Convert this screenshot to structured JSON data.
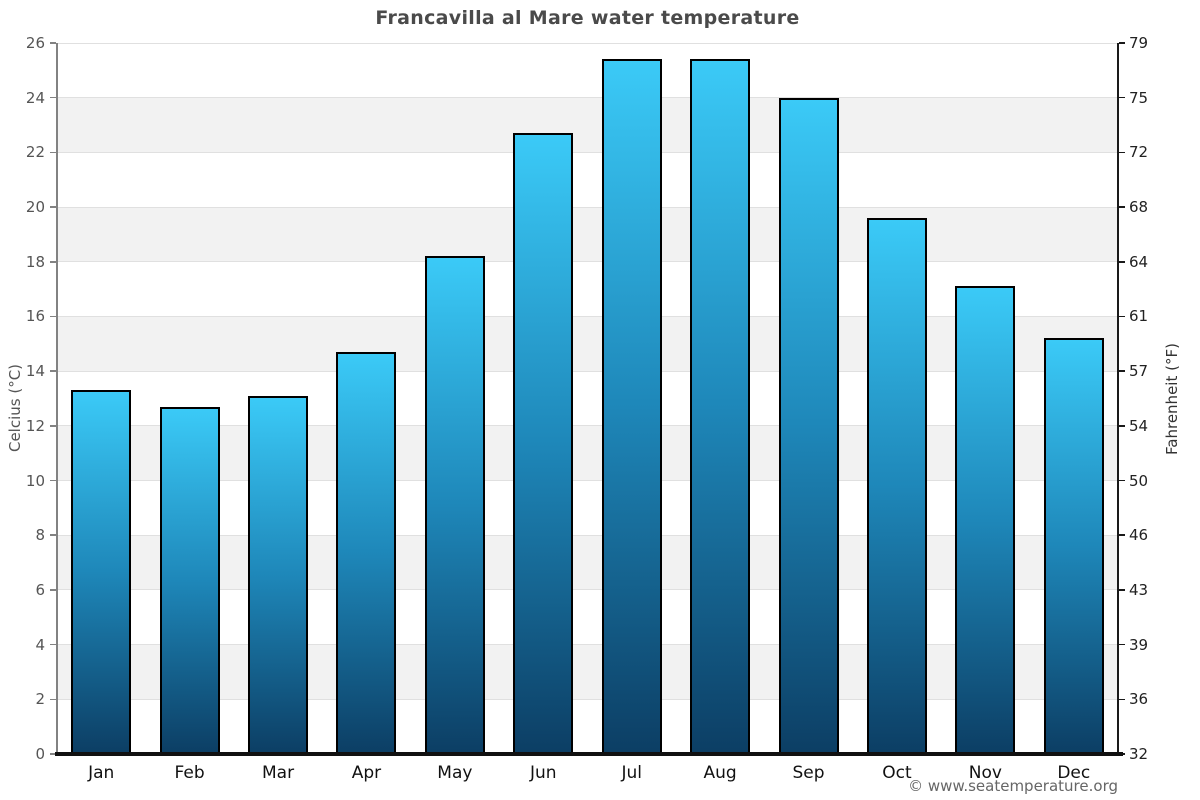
{
  "chart_data": {
    "type": "bar",
    "title": "Francavilla al Mare water temperature",
    "ylabel_left": "Celcius (°C)",
    "ylabel_right": "Fahrenheit (°F)",
    "xlabel": "",
    "categories": [
      "Jan",
      "Feb",
      "Mar",
      "Apr",
      "May",
      "Jun",
      "Jul",
      "Aug",
      "Sep",
      "Oct",
      "Nov",
      "Dec"
    ],
    "values": [
      13.3,
      12.7,
      13.1,
      14.7,
      18.2,
      22.7,
      25.4,
      25.4,
      24.0,
      19.6,
      17.1,
      15.2
    ],
    "unit": "°C",
    "ylim": [
      0,
      26
    ],
    "ytick_step": 2,
    "yticks_celsius": [
      0,
      2,
      4,
      6,
      8,
      10,
      12,
      14,
      16,
      18,
      20,
      22,
      24,
      26
    ],
    "yticks_fahrenheit": [
      32,
      36,
      39,
      43,
      46,
      50,
      54,
      57,
      61,
      64,
      68,
      72,
      75,
      79
    ],
    "legend_position": "none",
    "grid": "alternating horizontal bands every 2°C with thin gridlines",
    "colors": {
      "bar_gradient_top": "#3bcaf7",
      "bar_gradient_mid": "#1e87b9",
      "bar_gradient_bottom": "#0c3e64",
      "bar_border": "#000000",
      "band_gray": "#f2f2f2",
      "band_white": "#ffffff",
      "gridline": "#e0e0e0",
      "axis_left": "#828282",
      "axis_right": "#1a1a1a",
      "axis_bottom": "#111111",
      "tick_label_left": "#555555",
      "tick_label_right": "#222222",
      "month_label": "#111111",
      "title": "#4a4a4a",
      "copyright": "#666666"
    }
  },
  "footer": {
    "copyright": "© www.seatemperature.org"
  }
}
